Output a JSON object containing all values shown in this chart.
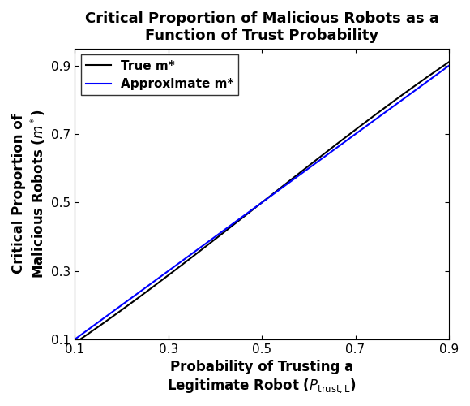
{
  "title_line1": "Critical Proportion of Malicious Robots as a",
  "title_line2": "Function of Trust Probability",
  "xlabel_line1": "Probability of Trusting a",
  "xlabel_line2": "Legitimate Robot ",
  "ylabel_line1": "Critical Proportion of",
  "ylabel_line2": "Malicious Robots ",
  "xlim": [
    0.1,
    0.9
  ],
  "ylim": [
    0.1,
    0.95
  ],
  "xticks": [
    0.1,
    0.3,
    0.5,
    0.7,
    0.9
  ],
  "yticks": [
    0.1,
    0.3,
    0.5,
    0.7,
    0.9
  ],
  "legend_true": "True m*",
  "legend_approx": "Approximate m*",
  "true_color": "#000000",
  "approx_color": "#0000FF",
  "line_width": 1.5,
  "title_fontsize": 13,
  "label_fontsize": 12,
  "tick_fontsize": 11,
  "legend_fontsize": 11
}
